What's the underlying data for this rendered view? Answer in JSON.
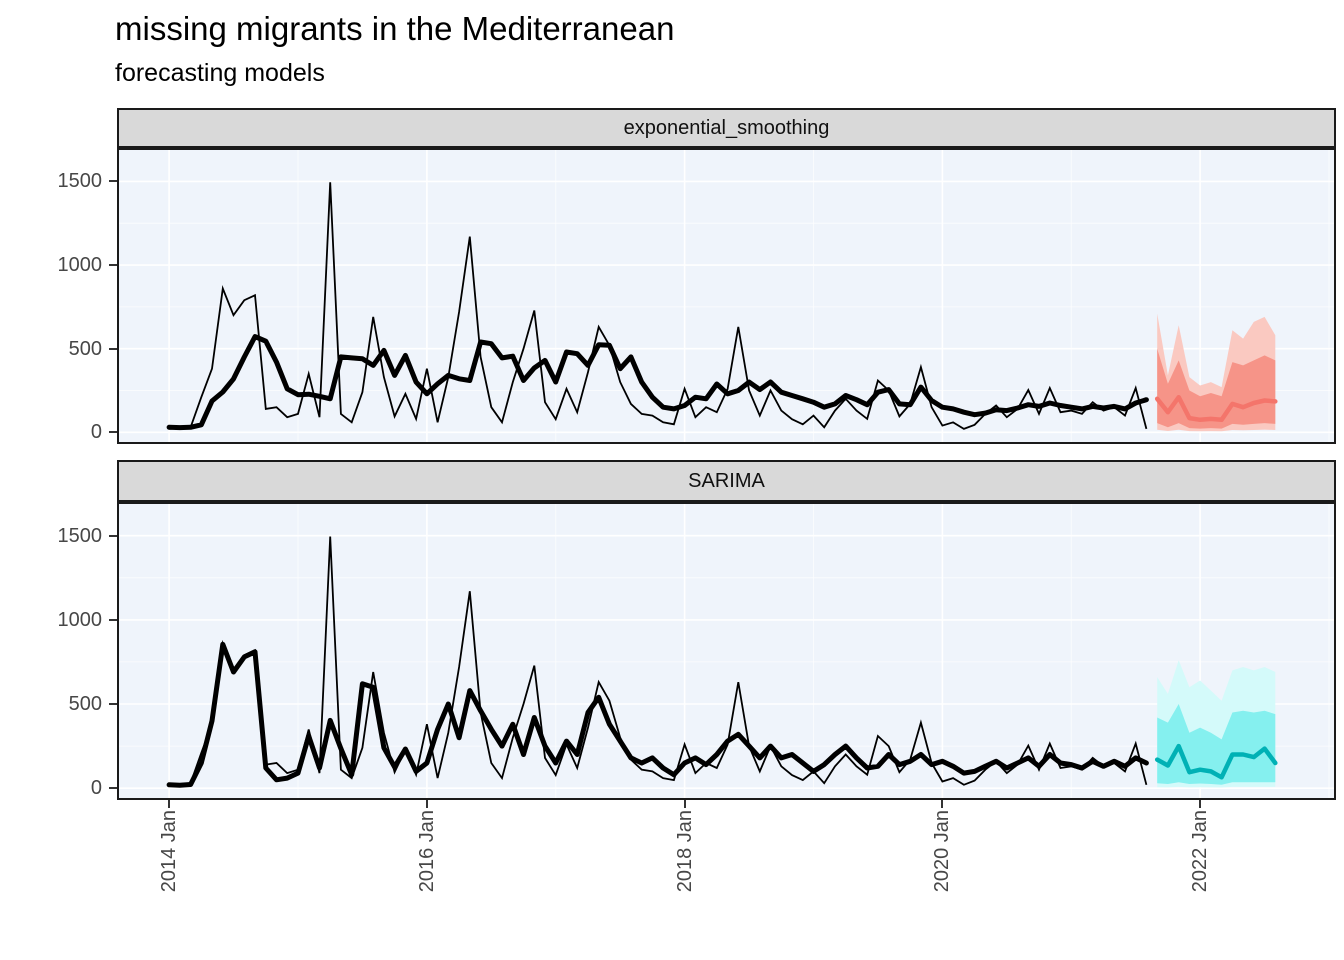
{
  "header": {
    "title": "missing migrants in the Mediterranean",
    "subtitle": "forecasting models"
  },
  "style": {
    "panel_bg": "#EFF4FB",
    "grid_color": "#FFFFFF",
    "strip_bg": "#D9D9D9",
    "panel_border": "#1A1A1A",
    "axis_text_color": "#474747",
    "observed_color": "#000000",
    "fitted_color": "#000000"
  },
  "chart_data": {
    "type": "line",
    "title": "missing migrants in the Mediterranean",
    "subtitle": "forecasting models",
    "facets": [
      "exponential_smoothing",
      "SARIMA"
    ],
    "x": {
      "start": "2014-01",
      "interval": "month",
      "tick_labels": [
        "2014 Jan",
        "2016 Jan",
        "2018 Jan",
        "2020 Jan",
        "2022 Jan"
      ],
      "tick_month_index": [
        0,
        24,
        48,
        72,
        96
      ],
      "minor_month_index": [
        12,
        36,
        60,
        84,
        108
      ],
      "shown_month_range": [
        -4.85,
        108.65
      ]
    },
    "y": {
      "ticks": [
        0,
        500,
        1000,
        1500
      ],
      "minor": [
        250,
        750,
        1250
      ],
      "range_shown": [
        -70,
        1700
      ]
    },
    "observed": [
      20,
      25,
      30,
      210,
      380,
      860,
      700,
      790,
      820,
      140,
      150,
      90,
      110,
      349,
      90,
      1495,
      110,
      60,
      240,
      690,
      330,
      95,
      230,
      80,
      380,
      60,
      330,
      720,
      1170,
      450,
      150,
      60,
      300,
      500,
      728,
      180,
      78,
      260,
      120,
      360,
      630,
      520,
      300,
      170,
      110,
      100,
      60,
      48,
      260,
      90,
      150,
      120,
      259,
      630,
      250,
      100,
      250,
      130,
      78,
      48,
      100,
      30,
      130,
      200,
      130,
      80,
      310,
      250,
      95,
      170,
      390,
      150,
      40,
      60,
      20,
      45,
      110,
      160,
      90,
      140,
      253,
      110,
      265,
      120,
      130,
      110,
      180,
      130,
      150,
      100,
      265,
      20
    ],
    "fitted": {
      "exponential_smoothing": [
        30,
        28,
        30,
        45,
        187,
        241,
        319,
        450,
        572,
        545,
        420,
        260,
        225,
        228,
        215,
        200,
        451,
        445,
        440,
        400,
        490,
        340,
        460,
        300,
        230,
        290,
        340,
        320,
        310,
        540,
        530,
        445,
        455,
        310,
        385,
        430,
        301,
        480,
        470,
        400,
        524,
        520,
        380,
        451,
        300,
        210,
        150,
        140,
        160,
        210,
        200,
        289,
        230,
        250,
        300,
        255,
        301,
        240,
        220,
        200,
        180,
        150,
        170,
        220,
        195,
        165,
        240,
        255,
        170,
        165,
        270,
        190,
        150,
        140,
        120,
        105,
        115,
        135,
        130,
        145,
        165,
        155,
        175,
        160,
        150,
        140,
        155,
        145,
        155,
        140,
        175,
        195
      ],
      "SARIMA": [
        20,
        18,
        22,
        150,
        400,
        855,
        690,
        780,
        810,
        120,
        50,
        60,
        90,
        310,
        120,
        403,
        235,
        80,
        620,
        600,
        240,
        126,
        233,
        100,
        150,
        350,
        500,
        300,
        580,
        460,
        350,
        250,
        380,
        200,
        420,
        250,
        150,
        280,
        200,
        450,
        540,
        380,
        280,
        180,
        150,
        180,
        120,
        80,
        150,
        180,
        140,
        200,
        280,
        320,
        250,
        180,
        250,
        180,
        200,
        150,
        100,
        140,
        200,
        250,
        180,
        120,
        130,
        200,
        140,
        160,
        200,
        140,
        160,
        130,
        90,
        100,
        130,
        160,
        120,
        150,
        180,
        130,
        200,
        150,
        140,
        120,
        160,
        130,
        160,
        130,
        180,
        150
      ]
    },
    "forecast": {
      "start_month_index": 92,
      "horizon_months": 12,
      "exponential_smoothing": {
        "color": "#F4756B",
        "fill80": "#F69488",
        "fill95": "#FAC9C1",
        "mean": [
          200,
          120,
          210,
          85,
          75,
          80,
          75,
          170,
          150,
          175,
          190,
          185
        ],
        "hi80": [
          500,
          290,
          430,
          250,
          215,
          235,
          215,
          420,
          400,
          430,
          460,
          430
        ],
        "lo80": [
          55,
          30,
          55,
          25,
          22,
          25,
          22,
          50,
          45,
          50,
          55,
          50
        ],
        "hi95": [
          710,
          340,
          640,
          330,
          280,
          300,
          270,
          610,
          560,
          660,
          690,
          580
        ],
        "lo95": [
          15,
          8,
          15,
          7,
          6,
          7,
          6,
          14,
          12,
          14,
          16,
          14
        ]
      },
      "SARIMA": {
        "color": "#00B1B5",
        "fill80": "#85F0EF",
        "fill95": "#D4FAFA",
        "mean": [
          170,
          135,
          250,
          95,
          110,
          100,
          65,
          200,
          200,
          185,
          235,
          150
        ],
        "hi80": [
          420,
          390,
          500,
          330,
          360,
          330,
          290,
          450,
          460,
          450,
          460,
          440
        ],
        "lo80": [
          30,
          25,
          35,
          25,
          28,
          25,
          20,
          35,
          35,
          35,
          35,
          35
        ],
        "hi95": [
          660,
          560,
          760,
          600,
          640,
          580,
          520,
          700,
          720,
          700,
          720,
          690
        ],
        "lo95": [
          6,
          5,
          8,
          5,
          6,
          5,
          4,
          8,
          8,
          8,
          8,
          8
        ]
      }
    },
    "legend": "none",
    "grid": "on"
  }
}
